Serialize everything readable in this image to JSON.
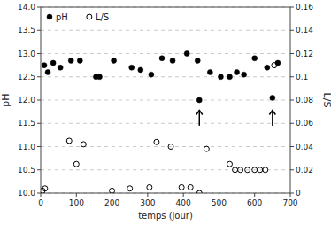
{
  "chart_data": {
    "type": "scatter",
    "xlabel": "temps (jour)",
    "ylabel": "pH",
    "y2label": "L/S",
    "xlim": [
      0,
      700
    ],
    "xticks": [
      0,
      100,
      200,
      300,
      400,
      500,
      600,
      700
    ],
    "ylim": [
      10,
      14
    ],
    "yticks": [
      {
        "value": 10,
        "label": "10.0"
      },
      {
        "value": 10.5,
        "label": "10.5"
      },
      {
        "value": 11,
        "label": "11.0"
      },
      {
        "value": 11.5,
        "label": "11.5"
      },
      {
        "value": 12,
        "label": "12.0"
      },
      {
        "value": 12.5,
        "label": "12.5"
      },
      {
        "value": 13,
        "label": "13.0"
      },
      {
        "value": 13.5,
        "label": "13.5"
      },
      {
        "value": 14,
        "label": "14.0"
      }
    ],
    "y2lim": [
      0,
      0.16
    ],
    "y2ticks": [
      0,
      0.02,
      0.04,
      0.06,
      0.08,
      0.1,
      0.12,
      0.14,
      0.16
    ],
    "grid": true,
    "legend": "upper-left",
    "series": [
      {
        "name": "pH",
        "color": "#000000",
        "marker": "filled-circle",
        "x": [
          10,
          20,
          35,
          55,
          85,
          110,
          155,
          165,
          205,
          255,
          280,
          310,
          340,
          370,
          410,
          440,
          445,
          475,
          505,
          530,
          550,
          570,
          600,
          635,
          650,
          665
        ],
        "values": [
          12.75,
          12.6,
          12.8,
          12.7,
          12.85,
          12.85,
          12.5,
          12.5,
          12.85,
          12.7,
          12.65,
          12.55,
          12.9,
          12.85,
          13.0,
          12.85,
          12.0,
          12.6,
          12.5,
          12.5,
          12.6,
          12.55,
          12.9,
          12.7,
          12.05,
          12.8
        ]
      },
      {
        "name": "L/S",
        "color": "#000000",
        "marker": "open-circle",
        "axis": "y2",
        "x": [
          5,
          12,
          80,
          100,
          120,
          200,
          250,
          305,
          325,
          365,
          395,
          420,
          445,
          465,
          530,
          545,
          560,
          580,
          600,
          615,
          630,
          655
        ],
        "values": [
          0.002,
          0.004,
          0.045,
          0.025,
          0.042,
          0.002,
          0.004,
          0.005,
          0.044,
          0.04,
          0.005,
          0.005,
          0.0,
          0.038,
          0.025,
          0.02,
          0.02,
          0.02,
          0.02,
          0.02,
          0.02,
          0.11
        ]
      }
    ],
    "annotations": [
      {
        "type": "arrow",
        "x": 445,
        "y_start": 11.45,
        "y_end": 11.78
      },
      {
        "type": "arrow",
        "x": 650,
        "y_start": 11.45,
        "y_end": 11.78
      }
    ]
  }
}
